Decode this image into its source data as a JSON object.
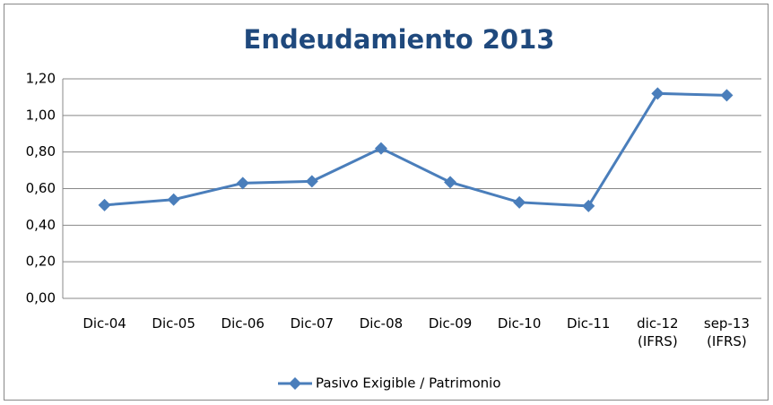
{
  "chart_data": {
    "type": "line",
    "title": "Endeudamiento 2013",
    "categories": [
      "Dic-04",
      "Dic-05",
      "Dic-06",
      "Dic-07",
      "Dic-08",
      "Dic-09",
      "Dic-10",
      "Dic-11",
      "dic-12 (IFRS)",
      "sep-13 (IFRS)"
    ],
    "series": [
      {
        "name": "Pasivo Exigible / Patrimonio",
        "color": "#4a7ebb",
        "values": [
          0.51,
          0.54,
          0.63,
          0.64,
          0.82,
          0.635,
          0.525,
          0.505,
          1.12,
          1.11
        ]
      }
    ],
    "ylim": [
      0,
      1.2
    ],
    "yticks": [
      {
        "value": 0,
        "label": "0,00"
      },
      {
        "value": 0.2,
        "label": "0,20"
      },
      {
        "value": 0.4,
        "label": "0,40"
      },
      {
        "value": 0.6,
        "label": "0,60"
      },
      {
        "value": 0.8,
        "label": "0,80"
      },
      {
        "value": 1.0,
        "label": "1,00"
      },
      {
        "value": 1.2,
        "label": "1,20"
      }
    ],
    "grid": true,
    "legend": "bottom"
  }
}
